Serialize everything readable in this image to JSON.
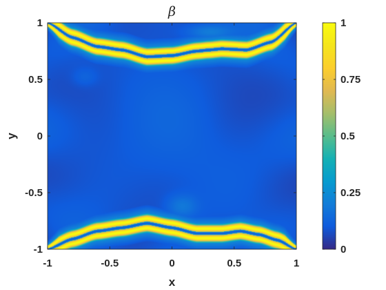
{
  "chart_data": {
    "type": "heatmap",
    "title": "β",
    "xlabel": "x",
    "ylabel": "y",
    "xlim": [
      -1,
      1
    ],
    "ylim": [
      -1,
      1
    ],
    "xticks": [
      {
        "value": -1,
        "label": "-1"
      },
      {
        "value": -0.5,
        "label": "-0.5"
      },
      {
        "value": 0,
        "label": "0"
      },
      {
        "value": 0.5,
        "label": "0.5"
      },
      {
        "value": 1,
        "label": "1"
      }
    ],
    "yticks": [
      {
        "value": -1,
        "label": "-1"
      },
      {
        "value": -0.5,
        "label": "-0.5"
      },
      {
        "value": 0,
        "label": "0"
      },
      {
        "value": 0.5,
        "label": "0.5"
      },
      {
        "value": 1,
        "label": "1"
      }
    ],
    "colorbar": {
      "colormap": "parula",
      "clim": [
        0,
        1
      ],
      "ticks": [
        {
          "value": 0,
          "label": "0"
        },
        {
          "value": 0.25,
          "label": "0.25"
        },
        {
          "value": 0.5,
          "label": "0.5"
        },
        {
          "value": 0.75,
          "label": "0.75"
        },
        {
          "value": 1,
          "label": "1"
        }
      ]
    },
    "field": {
      "background_level": 0.09,
      "band_peak_level": 1.0,
      "band_center_level": 0.1,
      "upper_band_centerline": {
        "x": [
          -1,
          -0.8,
          -0.6,
          -0.4,
          -0.2,
          0,
          0.2,
          0.3,
          0.4,
          0.6,
          0.8,
          1
        ],
        "y": [
          1,
          0.87,
          0.79,
          0.76,
          0.7,
          0.71,
          0.75,
          0.76,
          0.77,
          0.76,
          0.83,
          1
        ]
      },
      "lower_band_centerline": {
        "x": [
          -1,
          -0.8,
          -0.6,
          -0.4,
          -0.2,
          0,
          0.2,
          0.4,
          0.55,
          0.7,
          0.85,
          1
        ],
        "y": [
          -1,
          -0.91,
          -0.84,
          -0.81,
          -0.77,
          -0.81,
          -0.86,
          -0.86,
          -0.84,
          -0.87,
          -0.92,
          -1
        ]
      }
    },
    "grid": false,
    "legend": "none"
  }
}
